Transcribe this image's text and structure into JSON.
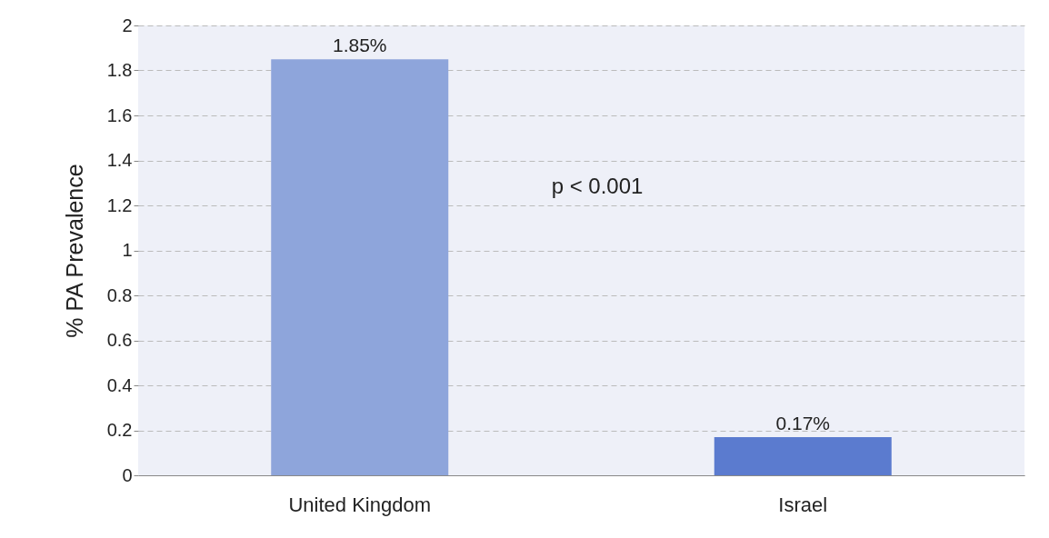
{
  "chart_data": {
    "type": "bar",
    "ylabel": "% PA Prevalence",
    "categories": [
      "United Kingdom",
      "Israel"
    ],
    "values": [
      1.85,
      0.17
    ],
    "colors": [
      "#8ea5db",
      "#5b7bcf"
    ],
    "value_labels": [
      "1.85%",
      "0.17%"
    ],
    "ylim": [
      0,
      2
    ],
    "yticks": [
      0,
      0.2,
      0.4,
      0.6,
      0.8,
      1,
      1.2,
      1.4,
      1.6,
      1.8,
      2
    ],
    "grid": "y",
    "annotations": [
      "p < 0.001"
    ]
  }
}
